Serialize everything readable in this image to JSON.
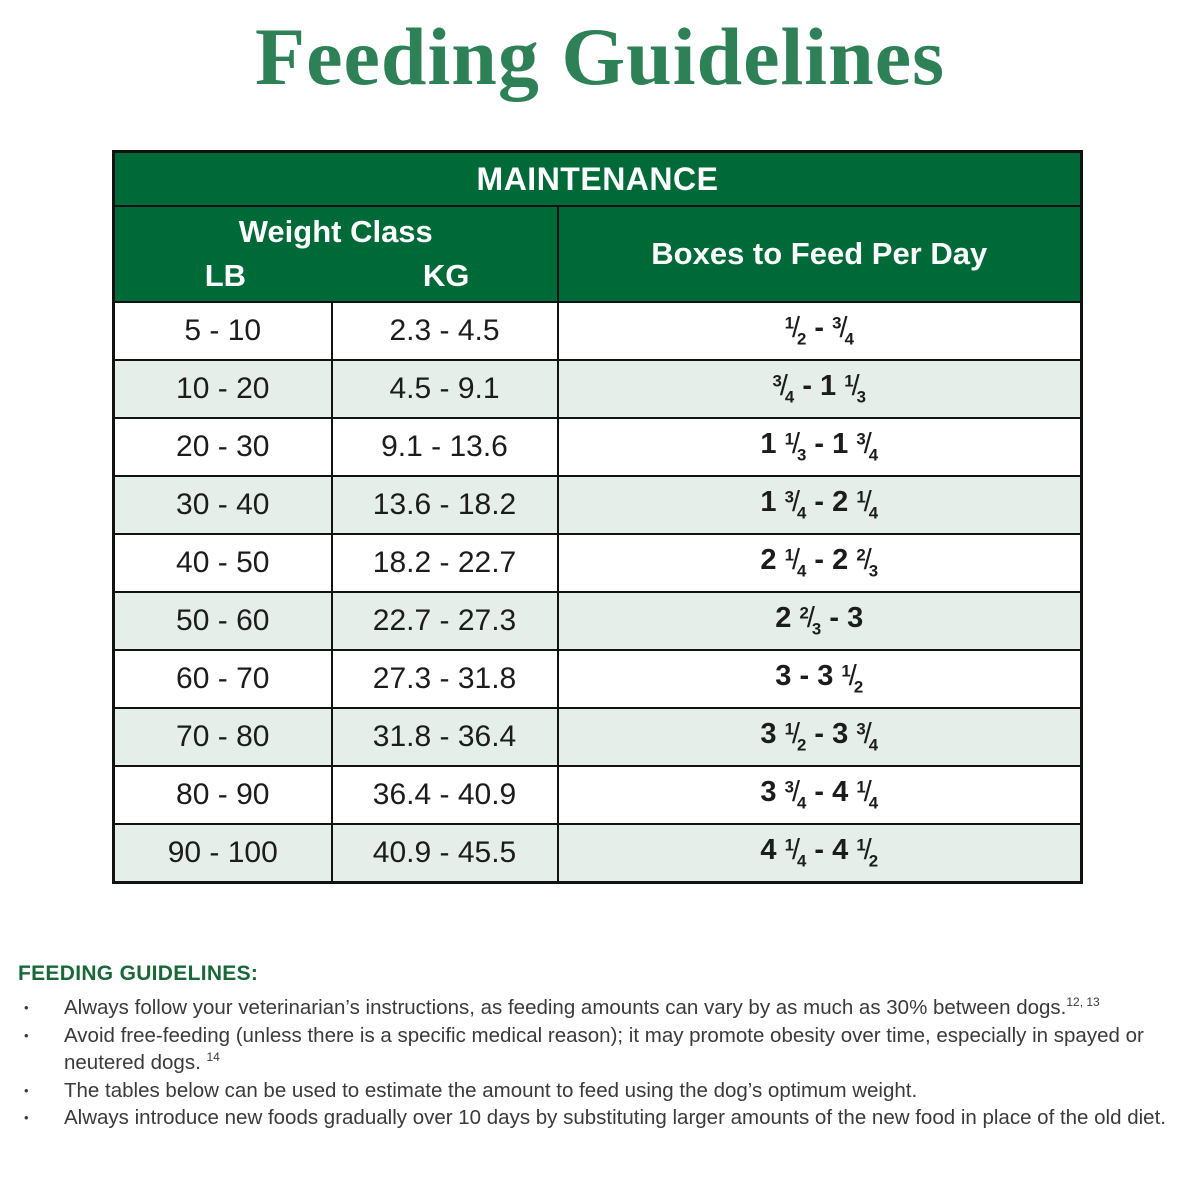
{
  "title": "Feeding Guidelines",
  "colors": {
    "header_green": "#006938",
    "title_green": "#2e8156",
    "notes_green": "#1a683a",
    "alt_row": "#e6eee9",
    "border": "#121212"
  },
  "table": {
    "header": "MAINTENANCE",
    "weight_class_label": "Weight Class",
    "lb_label": "LB",
    "kg_label": "KG",
    "boxes_label": "Boxes to Feed Per Day",
    "rows": [
      {
        "lb": "5 - 10",
        "kg": "2.3 - 4.5",
        "boxes": "1/2 - 3/4"
      },
      {
        "lb": "10 - 20",
        "kg": "4.5 - 9.1",
        "boxes": "3/4 - 1 1/3"
      },
      {
        "lb": "20 - 30",
        "kg": "9.1 - 13.6",
        "boxes": "1 1/3 - 1 3/4"
      },
      {
        "lb": "30 - 40",
        "kg": "13.6 - 18.2",
        "boxes": "1 3/4 - 2 1/4"
      },
      {
        "lb": "40 - 50",
        "kg": "18.2 - 22.7",
        "boxes": "2 1/4 - 2 2/3"
      },
      {
        "lb": "50 - 60",
        "kg": "22.7 - 27.3",
        "boxes": "2 2/3 - 3"
      },
      {
        "lb": "60 - 70",
        "kg": "27.3 - 31.8",
        "boxes": "3 - 3 1/2"
      },
      {
        "lb": "70 - 80",
        "kg": "31.8 - 36.4",
        "boxes": "3 1/2 - 3 3/4"
      },
      {
        "lb": "80 - 90",
        "kg": "36.4 - 40.9",
        "boxes": "3 3/4 - 4 1/4"
      },
      {
        "lb": "90 - 100",
        "kg": "40.9 - 45.5",
        "boxes": "4 1/4 - 4 1/2"
      }
    ]
  },
  "notes": {
    "heading": "FEEDING GUIDELINES:",
    "bullet_glyph": "•",
    "bullets": [
      {
        "text": "Always follow your veterinarian’s instructions, as feeding amounts can vary by as much as 30% between dogs.",
        "sup": "12, 13"
      },
      {
        "text": "Avoid free-feeding (unless there is a specific medical reason); it may promote obesity over time, especially in spayed or neutered dogs. ",
        "sup": "14"
      },
      {
        "text": "The tables below can be used to estimate the amount to feed using the dog’s optimum weight.",
        "sup": ""
      },
      {
        "text": "Always introduce new foods gradually over 10 days by substituting larger amounts of the new food in place of the old diet.",
        "sup": ""
      }
    ]
  }
}
